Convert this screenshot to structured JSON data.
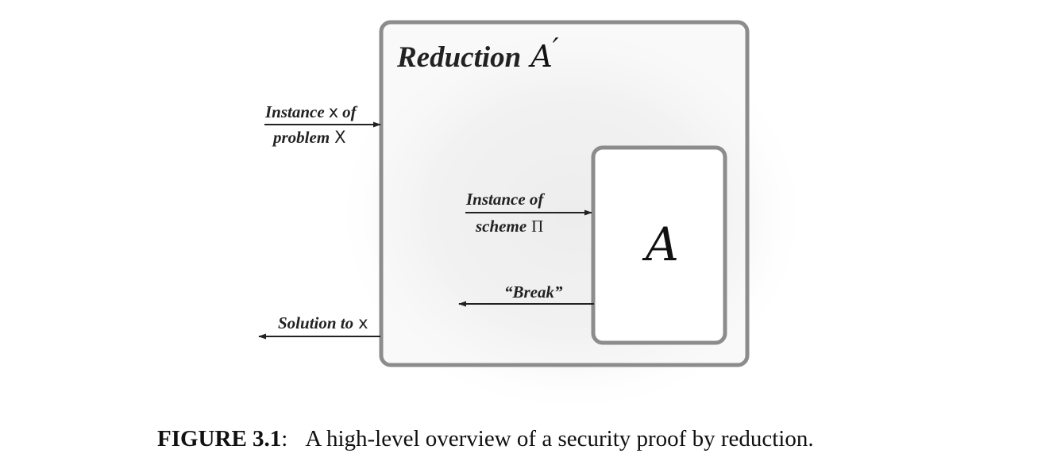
{
  "reduction_box": {
    "title_word": "Reduction",
    "title_symbol": "A",
    "title_prime": "′"
  },
  "input_problem": {
    "line1_prefix": "Instance",
    "line1_var": "x",
    "line1_suffix": "of",
    "line2_prefix": "problem",
    "line2_var": "X"
  },
  "output_solution": {
    "prefix": "Solution to",
    "var": "x"
  },
  "instance_scheme": {
    "line1": "Instance of",
    "line2_prefix": "scheme",
    "line2_var": "Π"
  },
  "break_label": "“Break”",
  "adversary_box": {
    "symbol": "A"
  },
  "caption": {
    "label": "FIGURE 3.1",
    "separator": ":",
    "text": "A high-level overview of a security proof by reduction."
  },
  "colors": {
    "box_border": "#8c8c8c",
    "arrow": "#222222",
    "shadow_center": "#e6e6e6"
  }
}
